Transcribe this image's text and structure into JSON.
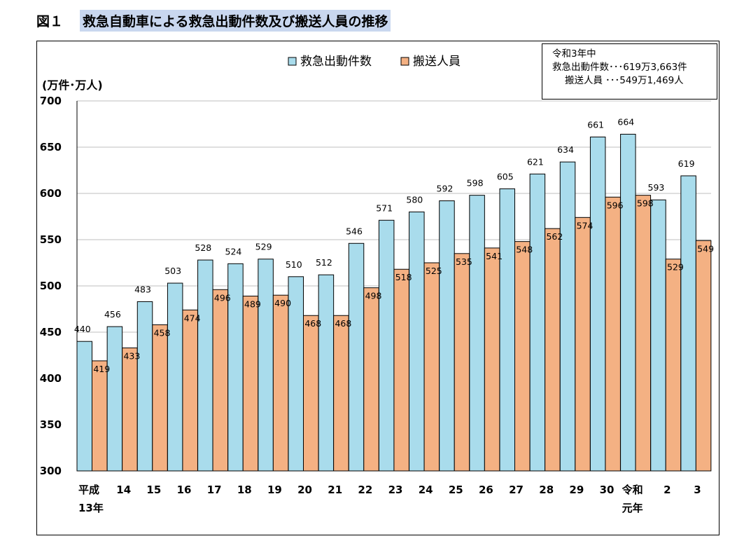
{
  "figure": {
    "number": "図１",
    "title": "救急自動車による救急出動件数及び搬送人員の推移"
  },
  "note": {
    "line1": "令和3年中",
    "row1_label": "救急出動件数",
    "row1_value": "･･･619万3,663件",
    "row2_label": "搬送人員",
    "row2_value": "･･･549万1,469人"
  },
  "colors": {
    "series1": "#a9dcec",
    "series2": "#f4b183",
    "grid": "#bfbfbf",
    "title_highlight": "#c9d7ef"
  },
  "chart_data": {
    "type": "bar",
    "title": "",
    "xlabel": "",
    "ylabel": "(万件･万人)",
    "ylim": [
      300,
      700
    ],
    "yticks": [
      300,
      350,
      400,
      450,
      500,
      550,
      600,
      650,
      700
    ],
    "grid": true,
    "legend_position": "top-center",
    "categories": [
      {
        "line1": "平成",
        "line2": "13年"
      },
      {
        "line1": "14",
        "line2": ""
      },
      {
        "line1": "15",
        "line2": ""
      },
      {
        "line1": "16",
        "line2": ""
      },
      {
        "line1": "17",
        "line2": ""
      },
      {
        "line1": "18",
        "line2": ""
      },
      {
        "line1": "19",
        "line2": ""
      },
      {
        "line1": "20",
        "line2": ""
      },
      {
        "line1": "21",
        "line2": ""
      },
      {
        "line1": "22",
        "line2": ""
      },
      {
        "line1": "23",
        "line2": ""
      },
      {
        "line1": "24",
        "line2": ""
      },
      {
        "line1": "25",
        "line2": ""
      },
      {
        "line1": "26",
        "line2": ""
      },
      {
        "line1": "27",
        "line2": ""
      },
      {
        "line1": "28",
        "line2": ""
      },
      {
        "line1": "29",
        "line2": ""
      },
      {
        "line1": "30",
        "line2": ""
      },
      {
        "line1": "令和",
        "line2": "元年"
      },
      {
        "line1": "2",
        "line2": ""
      },
      {
        "line1": "3",
        "line2": ""
      }
    ],
    "series": [
      {
        "name": "救急出動件数",
        "values": [
          440,
          456,
          483,
          503,
          528,
          524,
          529,
          510,
          512,
          546,
          571,
          580,
          592,
          598,
          605,
          621,
          634,
          661,
          664,
          593,
          619
        ]
      },
      {
        "name": "搬送人員",
        "values": [
          419,
          433,
          458,
          474,
          496,
          489,
          490,
          468,
          468,
          498,
          518,
          525,
          535,
          541,
          548,
          562,
          574,
          596,
          598,
          529,
          549
        ]
      }
    ]
  }
}
